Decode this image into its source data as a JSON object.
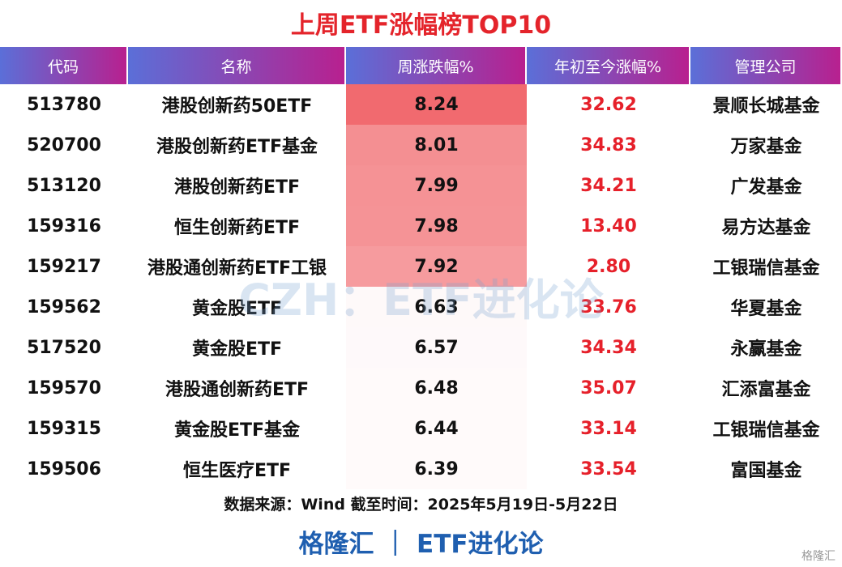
{
  "title": "上周ETF涨幅榜TOP10",
  "table": {
    "headers": [
      "代码",
      "名称",
      "周涨跌幅%",
      "年初至今涨幅%",
      "管理公司"
    ],
    "rows": [
      [
        "513780",
        "港股创新药50ETF",
        "8.24",
        "32.62",
        "景顺长城基金"
      ],
      [
        "520700",
        "港股创新药ETF基金",
        "8.01",
        "34.83",
        "万家基金"
      ],
      [
        "513120",
        "港股创新药ETF",
        "7.99",
        "34.21",
        "广发基金"
      ],
      [
        "159316",
        "恒生创新药ETF",
        "7.98",
        "13.40",
        "易方达基金"
      ],
      [
        "159217",
        "港股通创新药ETF工银",
        "7.92",
        "2.80",
        "工银瑞信基金"
      ],
      [
        "159562",
        "黄金股ETF",
        "6.63",
        "33.76",
        "华夏基金"
      ],
      [
        "517520",
        "黄金股ETF",
        "6.57",
        "34.34",
        "永赢基金"
      ],
      [
        "159570",
        "港股通创新药ETF",
        "6.48",
        "35.07",
        "汇添富基金"
      ],
      [
        "159315",
        "黄金股ETF基金",
        "6.44",
        "33.14",
        "工银瑞信基金"
      ],
      [
        "159506",
        "恒生医疗ETF",
        "6.39",
        "33.54",
        "富国基金"
      ]
    ]
  },
  "source": "数据来源：Wind 截至时间：2025年5月19日-5月22日",
  "footer": "格隆汇 ｜ ETF进化论",
  "watermark": "CZH：ETF进化论",
  "logo": "格隆汇"
}
